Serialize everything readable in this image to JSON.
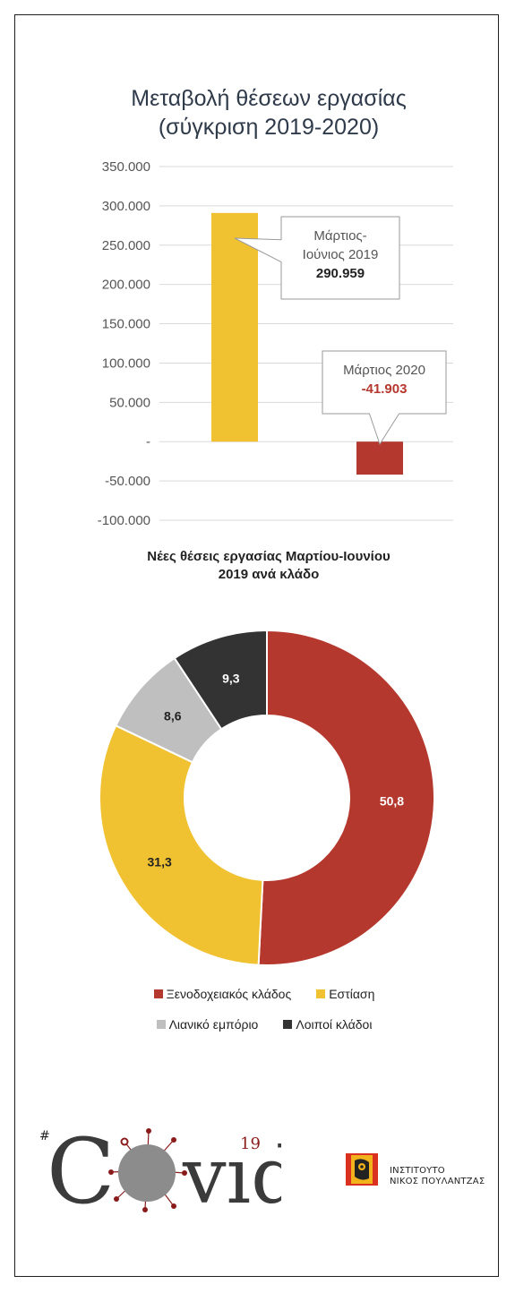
{
  "chart_data": [
    {
      "type": "bar",
      "title": "Μεταβολή θέσεων εργασίας\n(σύγκριση 2019-2020)",
      "categories": [
        "Μάρτιος-Ιούνιος 2019",
        "Μάρτιος 2020"
      ],
      "values": [
        290959,
        -41903
      ],
      "colors": [
        "#f0c232",
        "#b5382e"
      ],
      "ylim": [
        -100000,
        350000
      ],
      "yticks": [
        350000,
        300000,
        250000,
        200000,
        150000,
        100000,
        50000,
        0,
        -50000,
        -100000
      ],
      "ytick_labels": [
        "350.000",
        "300.000",
        "250.000",
        "200.000",
        "150.000",
        "100.000",
        "50.000",
        "-",
        "-50.000",
        "-100.000"
      ],
      "grid": true,
      "annotations": [
        {
          "label_lines": [
            "Μάρτιος-",
            "Ιούνιος 2019"
          ],
          "value_label": "290.959",
          "value_color": "#222222"
        },
        {
          "label_lines": [
            "Μάρτιος 2020"
          ],
          "value_label": "-41.903",
          "value_color": "#b5382e"
        }
      ]
    },
    {
      "type": "pie",
      "donut": true,
      "title": "Νέες θέσεις εργασίας Μαρτίου-Ιουνίου\n2019 ανά κλάδο",
      "slices": [
        {
          "label": "Ξενοδοχειακός κλάδος",
          "value": 50.8,
          "value_label": "50,8",
          "color": "#b5382e"
        },
        {
          "label": "Εστίαση",
          "value": 31.3,
          "value_label": "31,3",
          "color": "#f0c232"
        },
        {
          "label": "Λιανικό εμπόριο",
          "value": 8.6,
          "value_label": "8,6",
          "color": "#bfbfbf"
        },
        {
          "label": "Λοιποί κλάδοι",
          "value": 9.3,
          "value_label": "9,3",
          "color": "#333333"
        }
      ],
      "legend_placement": "bottom"
    }
  ],
  "logos": {
    "covid": {
      "mark": "C",
      "tail": "vıd",
      "superscript": "19",
      "icon": "virus-icon"
    },
    "institute": {
      "icon": "institute-face-icon",
      "line1": "ΙΝΣΤΙΤΟΥΤΟ",
      "line2": "ΝΙΚΟΣ ΠΟΥΛΑΝΤΖΑΣ"
    }
  }
}
